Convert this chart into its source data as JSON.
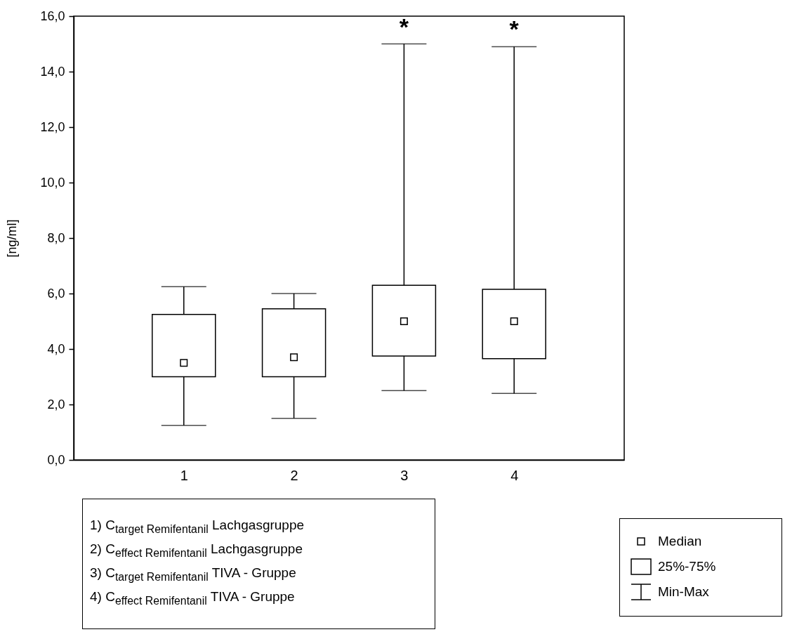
{
  "chart_data": {
    "type": "box",
    "ylabel": "[ng/ml]",
    "categories": [
      "1",
      "2",
      "3",
      "4"
    ],
    "boxes": [
      {
        "low": 1.25,
        "q1": 3.0,
        "median": 3.5,
        "q3": 5.25,
        "high": 6.25
      },
      {
        "low": 1.5,
        "q1": 3.0,
        "median": 3.7,
        "q3": 5.45,
        "high": 6.0
      },
      {
        "low": 2.5,
        "q1": 3.75,
        "median": 5.0,
        "q3": 6.3,
        "high": 15.0
      },
      {
        "low": 2.4,
        "q1": 3.65,
        "median": 5.0,
        "q3": 6.15,
        "high": 14.9
      }
    ],
    "color": "#000000",
    "ylim": [
      0,
      16
    ],
    "yticks": [
      {
        "value": 0,
        "label": "0,0"
      },
      {
        "value": 2,
        "label": "2,0"
      },
      {
        "value": 4,
        "label": "4,0"
      },
      {
        "value": 6,
        "label": "6,0"
      },
      {
        "value": 8,
        "label": "8,0"
      },
      {
        "value": 10,
        "label": "10,0"
      },
      {
        "value": 12,
        "label": "12,0"
      },
      {
        "value": 14,
        "label": "14,0"
      },
      {
        "value": 16,
        "label": "16,0"
      }
    ],
    "grid": false,
    "marker": "square",
    "annotations": [
      {
        "text": "*",
        "x": "3",
        "y": 15.0
      },
      {
        "text": "*",
        "x": "4",
        "y": 14.9
      },
      "1) C$_{target Remifentanil}$  Lachgasgruppe",
      "2) C$_{effect Remifentanil}$  Lachgasgruppe",
      "3) C$_{target Remifentanil}$  TIVA - Gruppe",
      "4) C$_{effect Remifentanil}$  TIVA - Gruppe",
      "Median",
      "25%-75%",
      "Min-Max"
    ]
  }
}
